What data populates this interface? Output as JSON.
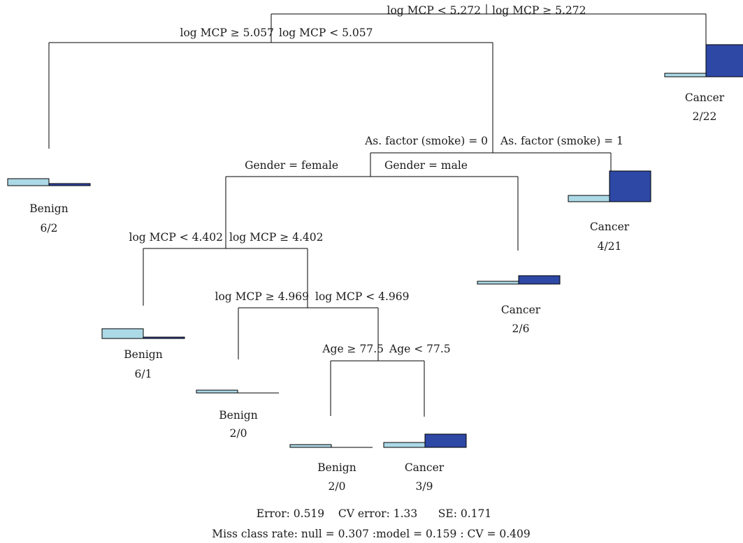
{
  "splits": [
    {
      "left": "log MCP < 5.272",
      "right": "log MCP ≥ 5.272"
    },
    {
      "left": "log MCP ≥ 5.057",
      "right": "log MCP < 5.057"
    },
    {
      "left": "As. factor (smoke) = 0",
      "right": "As. factor (smoke) = 1"
    },
    {
      "left": "Gender = female",
      "right": "Gender = male"
    },
    {
      "left": "log MCP < 4.402",
      "right": "log MCP ≥ 4.402"
    },
    {
      "left": "log MCP ≥ 4.969",
      "right": "log MCP < 4.969"
    },
    {
      "left": "Age ≥ 77.5",
      "right": "Age < 77.5"
    }
  ],
  "leaves": [
    {
      "class": "Cancer",
      "counts": "2/22",
      "benign": 2,
      "cancer": 22
    },
    {
      "class": "Benign",
      "counts": "6/2",
      "benign": 6,
      "cancer": 2
    },
    {
      "class": "Cancer",
      "counts": "4/21",
      "benign": 4,
      "cancer": 21
    },
    {
      "class": "Cancer",
      "counts": "2/6",
      "benign": 2,
      "cancer": 6
    },
    {
      "class": "Benign",
      "counts": "6/1",
      "benign": 6,
      "cancer": 1
    },
    {
      "class": "Benign",
      "counts": "2/0",
      "benign": 2,
      "cancer": 0
    },
    {
      "class": "Benign",
      "counts": "2/0",
      "benign": 2,
      "cancer": 0
    },
    {
      "class": "Cancer",
      "counts": "3/9",
      "benign": 3,
      "cancer": 9
    }
  ],
  "footer": {
    "error_line": "Error: 0.519    CV error: 1.33      SE: 0.171",
    "missclass_line": "Miss class rate: null = 0.307 :model = 0.159 : CV = 0.409"
  },
  "colors": {
    "benign": "#acd9e6",
    "cancer": "#2e48a5",
    "edge": "#000000"
  }
}
